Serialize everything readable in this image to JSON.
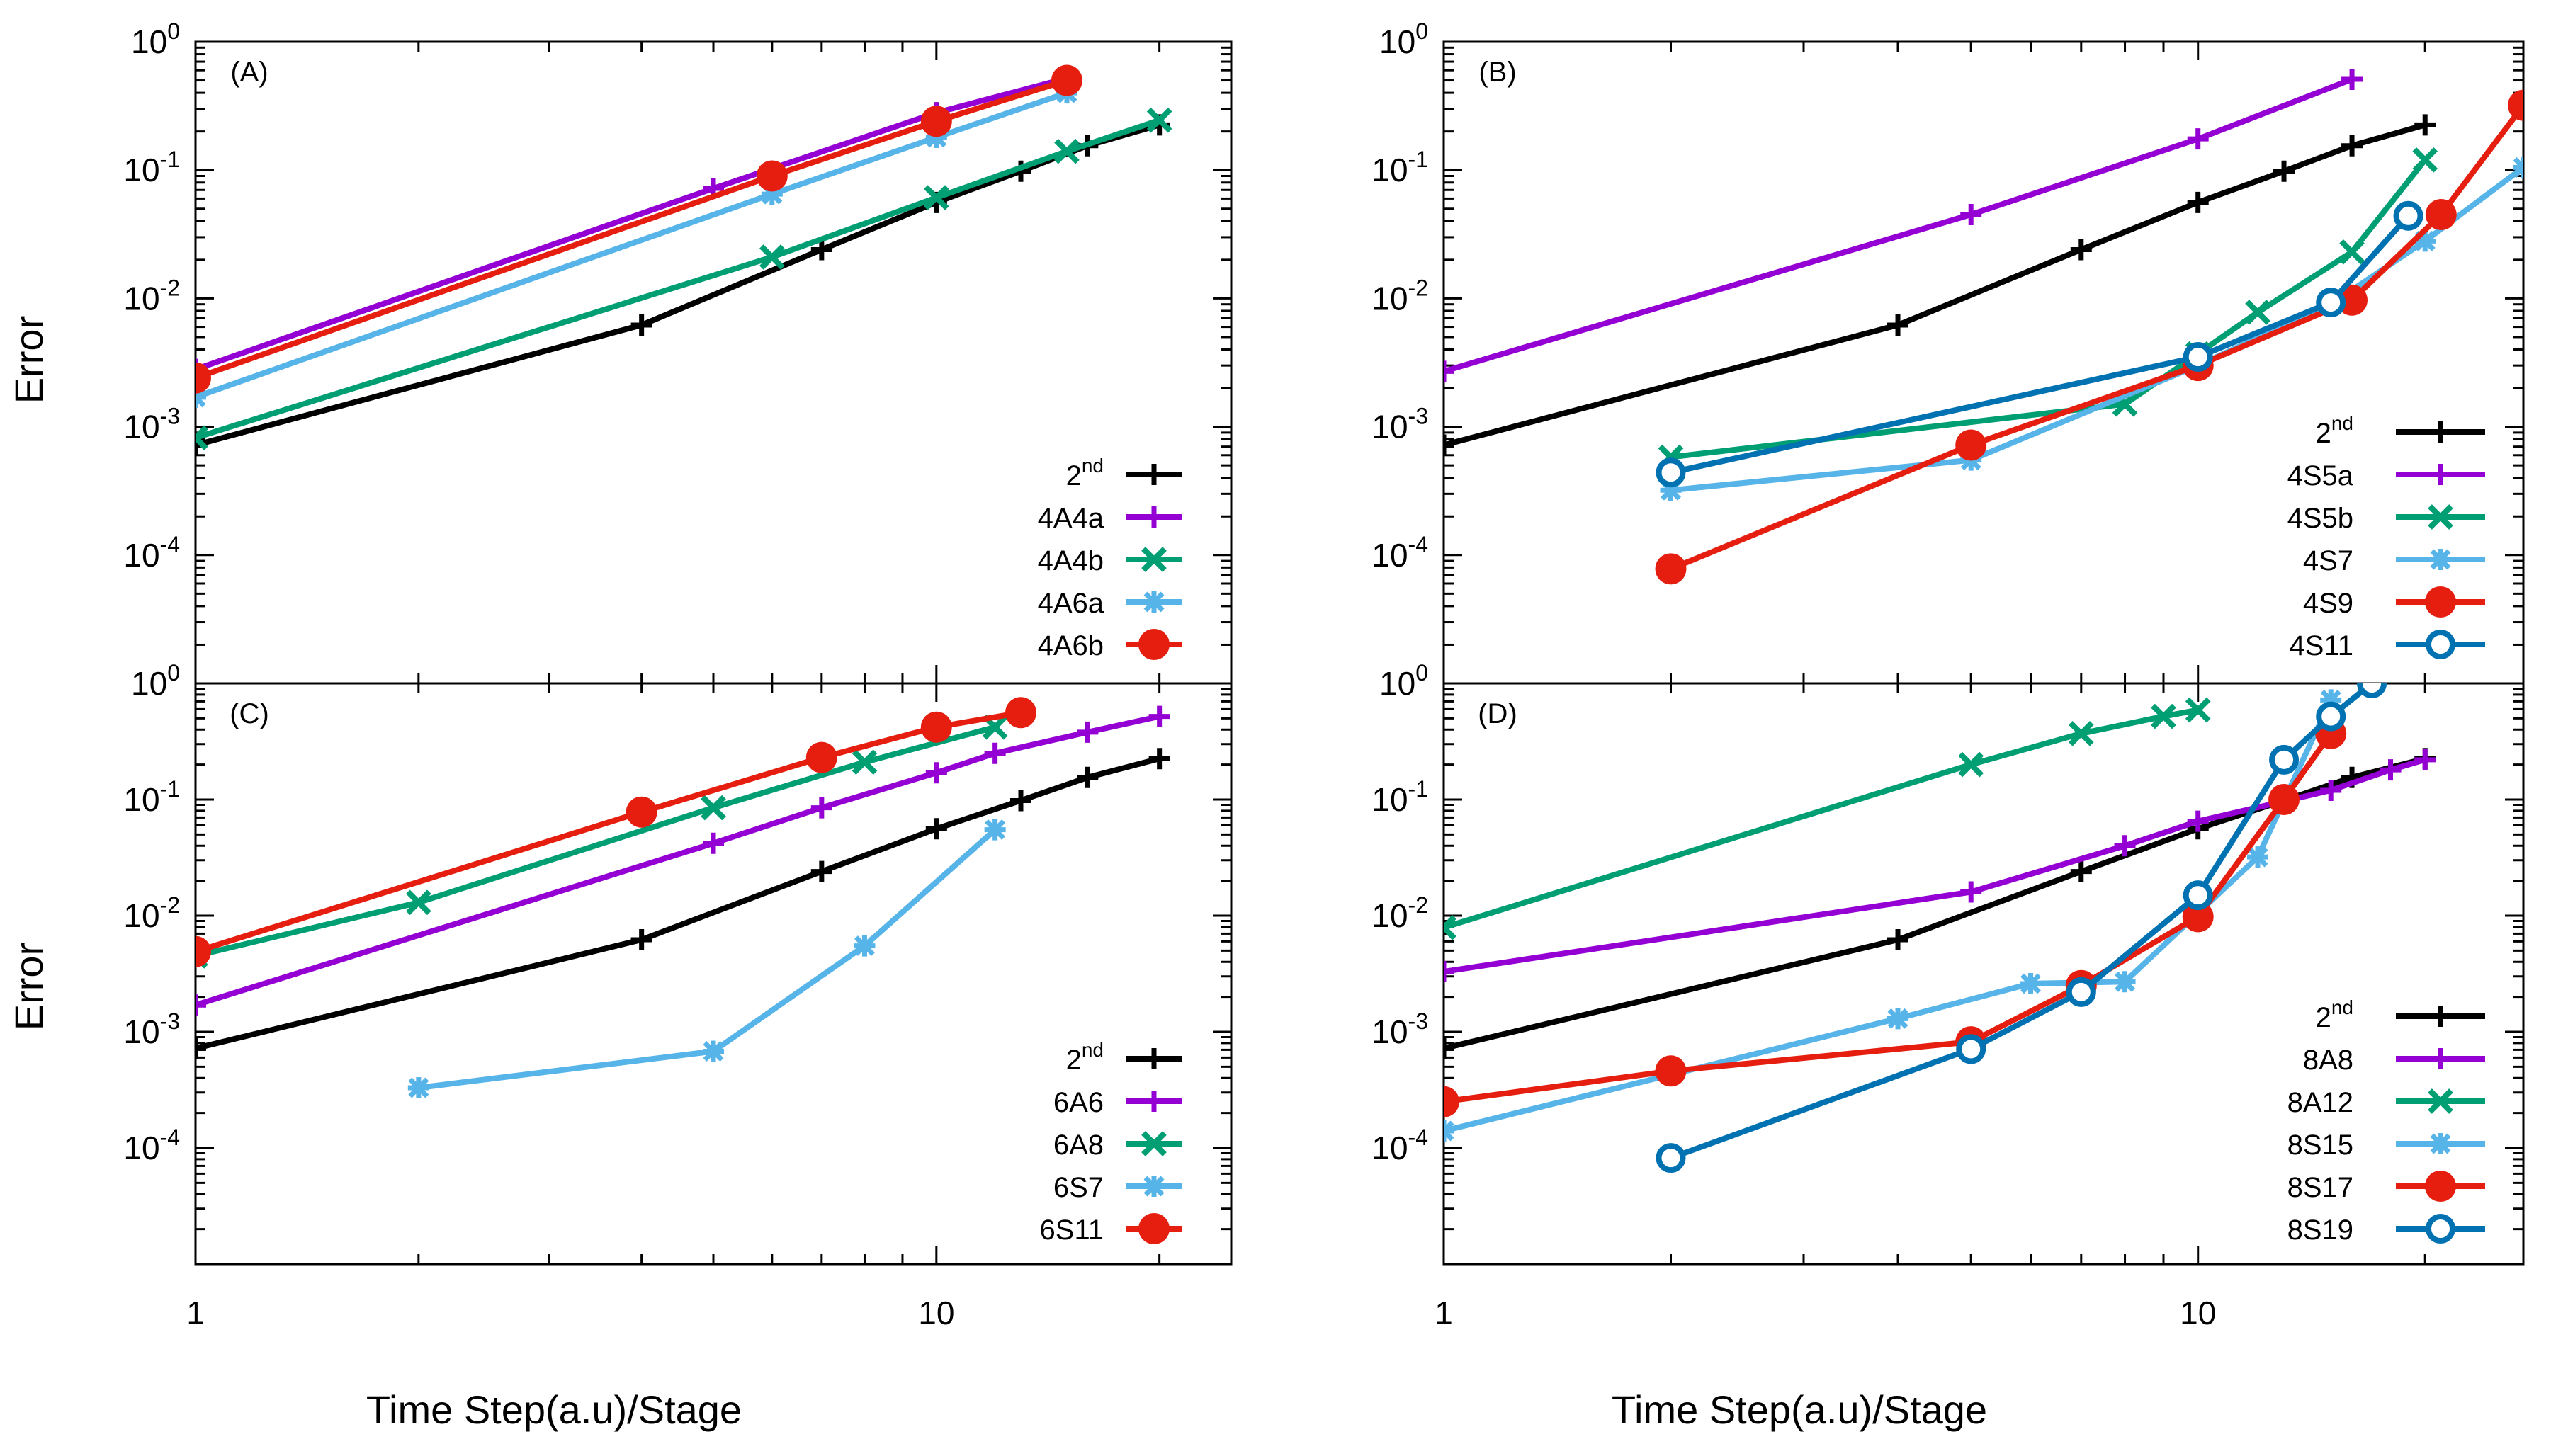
{
  "figure": {
    "ylabel_left": "Error",
    "xlabel_left": "Time Step(a.u)/Stage",
    "xlabel_right": "Time Step(a.u)/Stage"
  },
  "colors": {
    "2nd": "#000000",
    "purple": "#9400d3",
    "green": "#009e73",
    "lightblue": "#56b4e9",
    "red": "#e51e10",
    "darkblue": "#0072b2"
  },
  "chart_data": [
    {
      "type": "line",
      "panel_label": "(A)",
      "xscale": "log",
      "yscale": "log",
      "xlim": [
        1,
        25
      ],
      "ylim": [
        1e-05,
        1
      ],
      "xticks": [
        1,
        10
      ],
      "yticks": [
        "10^0",
        "10^-1",
        "10^-2",
        "10^-3",
        "10^-4"
      ],
      "legend_position": "bottom-right",
      "series": [
        {
          "name": "2nd",
          "sup": "nd",
          "base": "2",
          "color": "#000000",
          "marker": "plus",
          "x": [
            1,
            4,
            7,
            10,
            13,
            16,
            20
          ],
          "y": [
            0.00072,
            0.0062,
            0.024,
            0.056,
            0.098,
            0.155,
            0.225
          ]
        },
        {
          "name": "4A4a",
          "color": "#9400d3",
          "marker": "plus",
          "x": [
            1,
            5,
            10,
            15
          ],
          "y": [
            0.0028,
            0.072,
            0.28,
            0.52
          ]
        },
        {
          "name": "4A4b",
          "color": "#009e73",
          "marker": "cross",
          "x": [
            1,
            6,
            10,
            15,
            20
          ],
          "y": [
            0.00082,
            0.021,
            0.061,
            0.14,
            0.245
          ]
        },
        {
          "name": "4A6a",
          "color": "#56b4e9",
          "marker": "star",
          "x": [
            1,
            6,
            10,
            15
          ],
          "y": [
            0.0017,
            0.065,
            0.18,
            0.4
          ]
        },
        {
          "name": "4A6b",
          "color": "#e51e10",
          "marker": "circle",
          "x": [
            1,
            6,
            10,
            15
          ],
          "y": [
            0.0024,
            0.09,
            0.24,
            0.5
          ]
        }
      ]
    },
    {
      "type": "line",
      "panel_label": "(B)",
      "xscale": "log",
      "yscale": "log",
      "xlim": [
        1,
        27
      ],
      "ylim": [
        1e-05,
        1
      ],
      "xticks": [
        1,
        10
      ],
      "yticks": [
        "10^0",
        "10^-1",
        "10^-2",
        "10^-3",
        "10^-4"
      ],
      "legend_position": "bottom-right",
      "series": [
        {
          "name": "2nd",
          "sup": "nd",
          "base": "2",
          "color": "#000000",
          "marker": "plus",
          "x": [
            1,
            4,
            7,
            10,
            13,
            16,
            20
          ],
          "y": [
            0.00072,
            0.0062,
            0.024,
            0.056,
            0.098,
            0.155,
            0.225
          ]
        },
        {
          "name": "4S5a",
          "color": "#9400d3",
          "marker": "plus",
          "x": [
            1,
            5,
            10,
            16
          ],
          "y": [
            0.0027,
            0.045,
            0.175,
            0.51
          ]
        },
        {
          "name": "4S5b",
          "color": "#009e73",
          "marker": "cross",
          "x": [
            2,
            8,
            10,
            12,
            16,
            20
          ],
          "y": [
            0.00058,
            0.0015,
            0.0037,
            0.0078,
            0.023,
            0.12
          ]
        },
        {
          "name": "4S7",
          "color": "#56b4e9",
          "marker": "star",
          "x": [
            2,
            5,
            10,
            15,
            20,
            27
          ],
          "y": [
            0.00032,
            0.00055,
            0.003,
            0.009,
            0.028,
            0.105
          ]
        },
        {
          "name": "4S9",
          "color": "#e51e10",
          "marker": "circle",
          "x": [
            2,
            5,
            10,
            16,
            21,
            27
          ],
          "y": [
            7.8e-05,
            0.00072,
            0.003,
            0.0097,
            0.045,
            0.32
          ]
        },
        {
          "name": "4S11",
          "color": "#0072b2",
          "marker": "ring",
          "x": [
            2,
            10,
            15,
            19
          ],
          "y": [
            0.00044,
            0.0035,
            0.0093,
            0.044
          ]
        }
      ]
    },
    {
      "type": "line",
      "panel_label": "(C)",
      "xscale": "log",
      "yscale": "log",
      "xlim": [
        1,
        25
      ],
      "ylim": [
        1e-05,
        1
      ],
      "xticks": [
        1,
        10
      ],
      "yticks": [
        "10^0",
        "10^-1",
        "10^-2",
        "10^-3",
        "10^-4"
      ],
      "legend_position": "bottom-right",
      "series": [
        {
          "name": "2nd",
          "sup": "nd",
          "base": "2",
          "color": "#000000",
          "marker": "plus",
          "x": [
            1,
            4,
            7,
            10,
            13,
            16,
            20
          ],
          "y": [
            0.00072,
            0.0062,
            0.024,
            0.056,
            0.098,
            0.155,
            0.225
          ]
        },
        {
          "name": "6A6",
          "color": "#9400d3",
          "marker": "plus",
          "x": [
            1,
            5,
            7,
            10,
            12,
            16,
            20
          ],
          "y": [
            0.0017,
            0.042,
            0.085,
            0.17,
            0.25,
            0.38,
            0.52
          ]
        },
        {
          "name": "6A8",
          "color": "#009e73",
          "marker": "cross",
          "x": [
            1,
            2,
            5,
            8,
            12
          ],
          "y": [
            0.0045,
            0.013,
            0.085,
            0.21,
            0.42
          ]
        },
        {
          "name": "6S7",
          "color": "#56b4e9",
          "marker": "star",
          "x": [
            2,
            5,
            8,
            12
          ],
          "y": [
            0.00033,
            0.00068,
            0.0055,
            0.055
          ]
        },
        {
          "name": "6S11",
          "color": "#e51e10",
          "marker": "circle",
          "x": [
            1,
            4,
            7,
            10,
            13
          ],
          "y": [
            0.0049,
            0.078,
            0.23,
            0.42,
            0.56
          ]
        }
      ]
    },
    {
      "type": "line",
      "panel_label": "(D)",
      "xscale": "log",
      "yscale": "log",
      "xlim": [
        1,
        27
      ],
      "ylim": [
        1e-05,
        1
      ],
      "xticks": [
        1,
        10
      ],
      "yticks": [
        "10^0",
        "10^-1",
        "10^-2",
        "10^-3",
        "10^-4"
      ],
      "legend_position": "bottom-right",
      "series": [
        {
          "name": "2nd",
          "sup": "nd",
          "base": "2",
          "color": "#000000",
          "marker": "plus",
          "x": [
            1,
            4,
            7,
            10,
            13,
            16,
            20
          ],
          "y": [
            0.00072,
            0.0062,
            0.024,
            0.056,
            0.098,
            0.155,
            0.225
          ]
        },
        {
          "name": "8A8",
          "color": "#9400d3",
          "marker": "plus",
          "x": [
            1,
            5,
            8,
            10,
            15,
            18,
            20
          ],
          "y": [
            0.0033,
            0.016,
            0.04,
            0.065,
            0.12,
            0.18,
            0.22
          ]
        },
        {
          "name": "8A12",
          "color": "#009e73",
          "marker": "cross",
          "x": [
            1,
            5,
            7,
            9,
            10
          ],
          "y": [
            0.0079,
            0.2,
            0.37,
            0.52,
            0.59
          ]
        },
        {
          "name": "8S15",
          "color": "#56b4e9",
          "marker": "star",
          "x": [
            1,
            4,
            6,
            8,
            12,
            15
          ],
          "y": [
            0.00014,
            0.0013,
            0.0026,
            0.0027,
            0.032,
            0.72
          ]
        },
        {
          "name": "8S17",
          "color": "#e51e10",
          "marker": "circle",
          "x": [
            1,
            2,
            5,
            7,
            10,
            13,
            15
          ],
          "y": [
            0.00025,
            0.00046,
            0.00082,
            0.0025,
            0.0098,
            0.1,
            0.37
          ]
        },
        {
          "name": "8S19",
          "color": "#0072b2",
          "marker": "ring",
          "x": [
            2,
            5,
            7,
            10,
            13,
            15,
            17
          ],
          "y": [
            8.2e-05,
            0.00071,
            0.0022,
            0.015,
            0.22,
            0.52,
            1.0
          ]
        }
      ]
    }
  ]
}
